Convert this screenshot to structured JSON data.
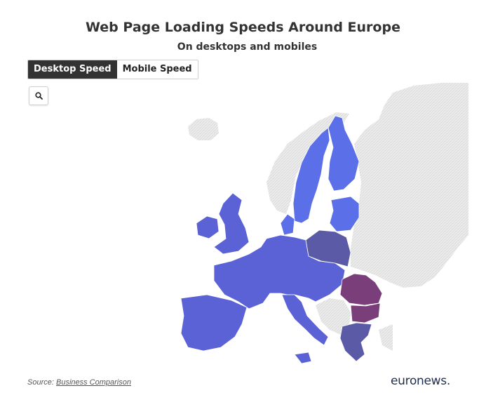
{
  "header": {
    "title": "Web Page Loading Speeds Around Europe",
    "subtitle": "On desktops and mobiles"
  },
  "toggle": {
    "options": [
      "Desktop Speed",
      "Mobile Speed"
    ],
    "selected": "Desktop Speed"
  },
  "zoom": {
    "icon": "search-icon"
  },
  "colors": {
    "fast_blue": "#5b6fe8",
    "mid_blue": "#5a62d6",
    "slate": "#5a5aa6",
    "slow_purple": "#7a3f7a",
    "non_eu": "#e3e3e3",
    "background": "#ffffff"
  },
  "footer": {
    "source_prefix": "Source:",
    "source_link": "Business Comparison",
    "logo": "euronews."
  }
}
